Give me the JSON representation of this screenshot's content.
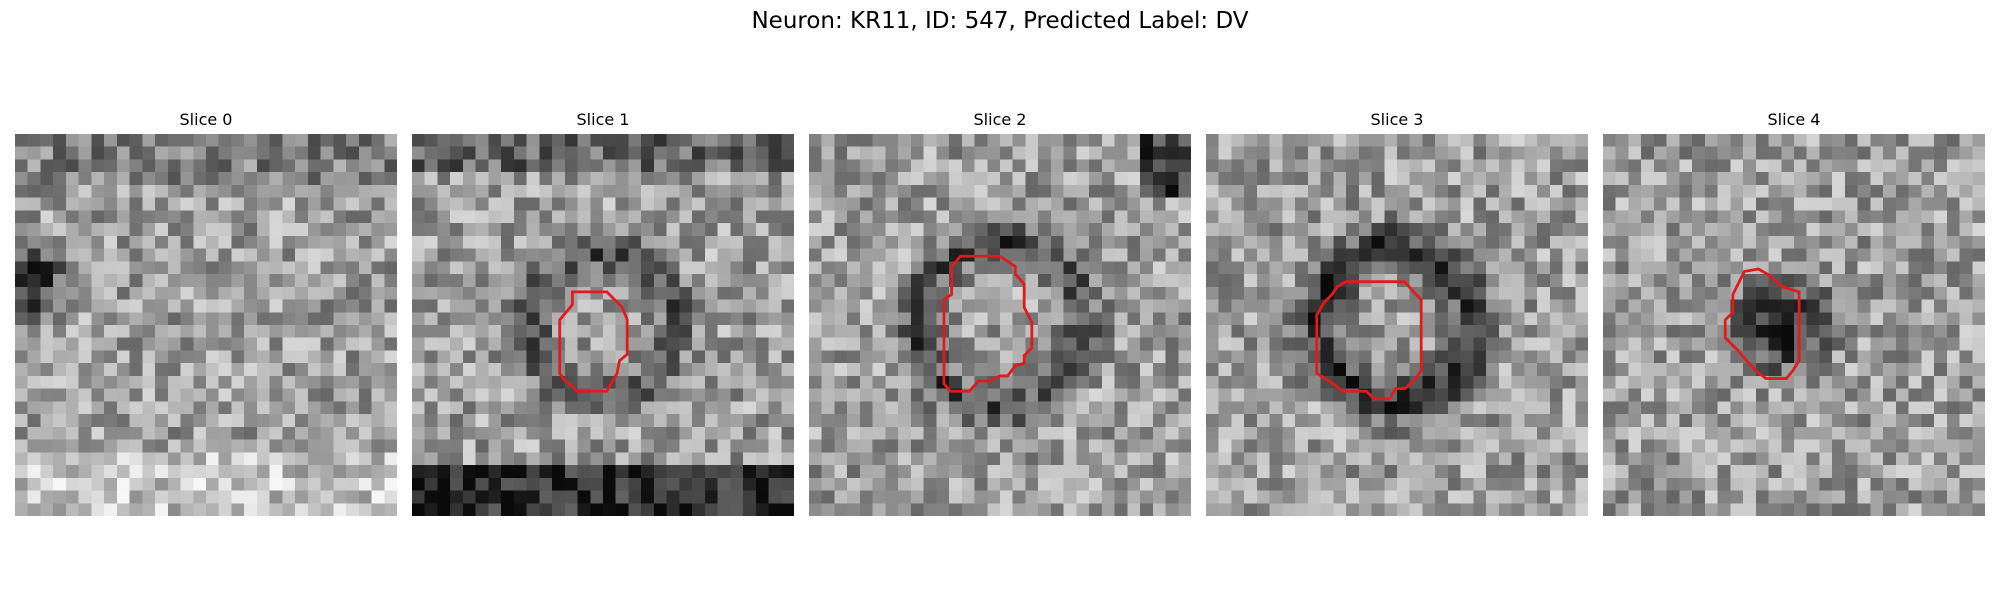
{
  "figure": {
    "suptitle": "Neuron: KR11, ID: 547, Predicted Label: DV",
    "outline_color": "#e31a1c",
    "colormap": "gray"
  },
  "slices": [
    {
      "title": "Slice 0",
      "seed": 11,
      "has_outline": false,
      "dark_region": "left"
    },
    {
      "title": "Slice 1",
      "seed": 23,
      "has_outline": true,
      "dark_region": "bottom"
    },
    {
      "title": "Slice 2",
      "seed": 37,
      "has_outline": true,
      "dark_region": "top-right"
    },
    {
      "title": "Slice 3",
      "seed": 51,
      "has_outline": true,
      "dark_region": "ring"
    },
    {
      "title": "Slice 4",
      "seed": 67,
      "has_outline": true,
      "dark_region": "center"
    }
  ]
}
